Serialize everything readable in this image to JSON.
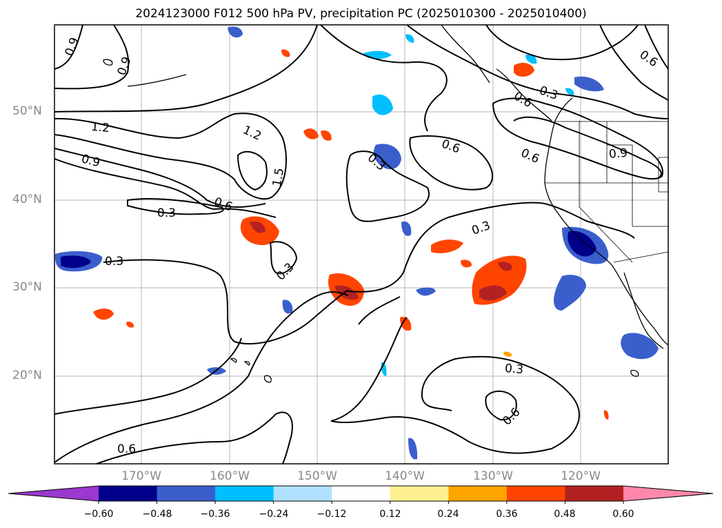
{
  "title": "2024123000 F012 500 hPa PV, precipitation PC (2025010300 - 2025010400)",
  "lat_labels": [
    "50°N",
    "40°N",
    "30°N",
    "20°N"
  ],
  "lon_labels": [
    "170°W",
    "160°W",
    "150°W",
    "140°W",
    "130°W",
    "120°W"
  ],
  "contour_labels": [
    "0.9",
    "0.9",
    "0.6",
    "0.3",
    "0.6",
    "1.2",
    "1.2",
    "0.9",
    "1.5",
    "0.3",
    "0.6",
    "0.6",
    "0.3",
    "0.9",
    "0.3",
    "0.3",
    "0.3",
    "0.3",
    "0.6",
    "0.6"
  ],
  "colorbar": {
    "colors": [
      "#9a38cf",
      "#00008b",
      "#3a5fcd",
      "#00bfff",
      "#b0e2ff",
      "#ffffff",
      "#fff08f",
      "#ffa500",
      "#ff4500",
      "#b22222",
      "#ff88aa"
    ],
    "tick_labels": [
      "−0.60",
      "−0.48",
      "−0.36",
      "−0.24",
      "−0.12",
      "0.12",
      "0.24",
      "0.36",
      "0.48",
      "0.60"
    ]
  }
}
